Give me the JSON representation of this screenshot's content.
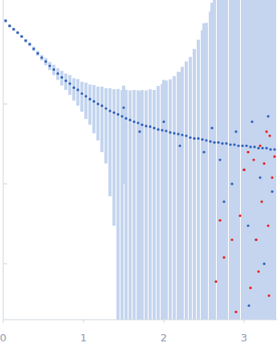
{
  "chart_data": {
    "type": "scatter",
    "log": "y",
    "tick_labels": "x",
    "grid": false,
    "xlim": [
      0,
      3.41
    ],
    "ylim": [
      0.002,
      20
    ],
    "xticks": [
      0,
      1,
      2,
      3
    ],
    "yticks": [
      0.01,
      0.1,
      1
    ],
    "series": [
      {
        "color": "#2f5fba",
        "marker": "circle",
        "x": [
          0.03,
          0.08,
          0.13,
          0.18,
          0.23,
          0.28,
          0.33,
          0.38,
          0.43,
          0.48,
          0.53,
          0.58,
          0.63,
          0.68,
          0.73,
          0.78,
          0.83,
          0.88,
          0.93,
          0.98,
          1.03,
          1.08,
          1.13,
          1.18,
          1.23,
          1.28,
          1.33,
          1.38,
          1.43,
          1.48,
          1.53,
          1.58,
          1.63,
          1.68,
          1.73,
          1.78,
          1.83,
          1.88,
          1.93,
          1.98,
          2.03,
          2.08,
          2.13,
          2.18,
          2.23,
          2.28,
          2.33,
          2.38,
          2.43,
          2.48,
          2.53,
          2.58,
          2.63,
          2.68,
          2.73,
          2.78,
          2.83,
          2.88,
          2.93,
          2.98,
          3.03,
          3.08,
          3.13,
          3.18,
          3.23,
          3.28,
          3.33,
          3.38,
          1.5,
          1.7,
          2.0,
          2.2,
          2.5,
          2.6,
          2.7,
          2.9,
          3.0,
          3.1,
          3.2,
          3.3,
          3.35,
          2.85,
          3.05,
          2.75,
          3.15,
          3.25,
          3.06
        ],
        "y": [
          11,
          9.5,
          8.6,
          7.8,
          7.0,
          6.2,
          5.6,
          4.9,
          4.3,
          3.8,
          3.4,
          3.0,
          2.7,
          2.4,
          2.15,
          1.95,
          1.8,
          1.6,
          1.5,
          1.35,
          1.25,
          1.15,
          1.08,
          1.0,
          0.95,
          0.88,
          0.82,
          0.78,
          0.74,
          0.7,
          0.66,
          0.63,
          0.6,
          0.58,
          0.55,
          0.53,
          0.52,
          0.5,
          0.48,
          0.47,
          0.46,
          0.44,
          0.43,
          0.42,
          0.41,
          0.4,
          0.38,
          0.37,
          0.37,
          0.36,
          0.35,
          0.34,
          0.33,
          0.33,
          0.32,
          0.32,
          0.31,
          0.31,
          0.3,
          0.3,
          0.3,
          0.29,
          0.29,
          0.28,
          0.28,
          0.28,
          0.27,
          0.27,
          0.9,
          0.45,
          0.6,
          0.3,
          0.25,
          0.5,
          0.2,
          0.45,
          0.15,
          0.6,
          0.12,
          0.7,
          0.08,
          0.1,
          0.03,
          0.06,
          0.02,
          0.01,
          0.003
        ],
        "errors": [
          0.5,
          0.4,
          0.35,
          0.3,
          0.3,
          0.3,
          0.3,
          0.3,
          0.3,
          0.3,
          0.35,
          0.35,
          0.4,
          0.4,
          0.45,
          0.45,
          0.5,
          0.5,
          0.55,
          0.55,
          0.6,
          0.6,
          0.65,
          0.65,
          0.7,
          0.7,
          0.75,
          0.75,
          0.8,
          0.8,
          0.85,
          0.85,
          0.9,
          0.9,
          0.95,
          0.95,
          1.0,
          1.0,
          1.2,
          1.3,
          1.5,
          1.6,
          1.8,
          2.1,
          2.5,
          3.0,
          3.5,
          4.5,
          6,
          8,
          10,
          14,
          20,
          20,
          20,
          20,
          20,
          20,
          20,
          20,
          20,
          20,
          20,
          20,
          20,
          20,
          20,
          20,
          0.8,
          1.0,
          1.4,
          2.2,
          10,
          18,
          20,
          20,
          20,
          20,
          20,
          20,
          20,
          20,
          20,
          20,
          20,
          20,
          20
        ]
      },
      {
        "color": "#e8201c",
        "marker": "circle",
        "x": [
          2.65,
          2.7,
          2.75,
          2.85,
          2.9,
          2.95,
          3.0,
          3.05,
          3.08,
          3.12,
          3.15,
          3.18,
          3.2,
          3.22,
          3.25,
          3.28,
          3.3,
          3.32,
          3.35,
          3.38,
          3.31
        ],
        "y": [
          0.006,
          0.035,
          0.012,
          0.02,
          0.0025,
          0.04,
          0.15,
          0.25,
          0.005,
          0.2,
          0.02,
          0.008,
          0.3,
          0.06,
          0.18,
          0.45,
          0.03,
          0.4,
          0.12,
          0.22,
          0.004
        ]
      }
    ]
  }
}
